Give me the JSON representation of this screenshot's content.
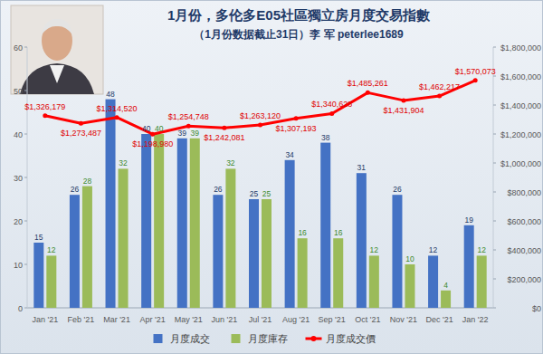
{
  "chart_data": {
    "type": "bar",
    "title": "1月份，多伦多E05社區獨立房月度交易指數",
    "subtitle": "（1月份数据截止31日）李 军 peterlee1689",
    "categories": [
      "Jan '21",
      "Feb '21",
      "Mar '21",
      "Apr '21",
      "May '21",
      "Jun '21",
      "Jul '21",
      "Aug '21",
      "Sep '21",
      "Oct '21",
      "Nov '21",
      "Dec '21",
      "Jan '22"
    ],
    "series": [
      {
        "name": "月度成交",
        "type": "bar",
        "color": "#4472c4",
        "values": [
          15,
          26,
          48,
          40,
          39,
          26,
          25,
          34,
          38,
          31,
          26,
          12,
          19
        ]
      },
      {
        "name": "月度庫存",
        "type": "bar",
        "color": "#9bbb59",
        "values": [
          12,
          28,
          32,
          40,
          39,
          32,
          25,
          16,
          16,
          12,
          10,
          4,
          12
        ]
      },
      {
        "name": "月度成交價",
        "type": "line",
        "axis": "y2",
        "color": "#ff0000",
        "values": [
          1326179,
          1273487,
          1314520,
          1198980,
          1254748,
          1242081,
          1263120,
          1307193,
          1340628,
          1485261,
          1431904,
          1462217,
          1570073
        ],
        "value_labels": [
          "$1,326,179",
          "$1,273,487",
          "$1,314,520",
          "$1,198,980",
          "$1,254,748",
          "$1,242,081",
          "$1,263,120",
          "$1,307,193",
          "$1,340,628",
          "$1,485,261",
          "$1,431,904",
          "$1,462,217",
          "$1,570,073"
        ]
      }
    ],
    "ylim": [
      0,
      60
    ],
    "yticks": [
      0,
      10,
      20,
      30,
      40,
      50,
      60
    ],
    "y2lim": [
      0,
      1800000
    ],
    "y2ticks": [
      {
        "value": 0,
        "label": "$0"
      },
      {
        "value": 200000,
        "label": "$200,000"
      },
      {
        "value": 400000,
        "label": "$400,000"
      },
      {
        "value": 600000,
        "label": "$600,000"
      },
      {
        "value": 800000,
        "label": "$800,000"
      },
      {
        "value": 1000000,
        "label": "$1,000,000"
      },
      {
        "value": 1200000,
        "label": "$1,200,000"
      },
      {
        "value": 1400000,
        "label": "$1,400,000"
      },
      {
        "value": 1600000,
        "label": "$1,600,000"
      },
      {
        "value": 1800000,
        "label": "$1,800,000"
      }
    ],
    "data_labels": true,
    "legend": "bottom",
    "grid": false
  }
}
